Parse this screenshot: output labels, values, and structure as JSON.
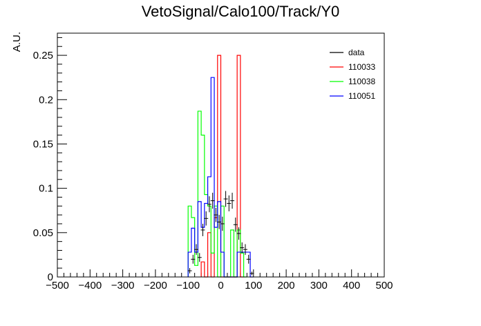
{
  "chart_data": {
    "type": "histogram",
    "title": "VetoSignal/Calo100/Track/Y0",
    "xlabel": "",
    "ylabel": "A.U.",
    "xlim": [
      -500,
      500
    ],
    "ylim": [
      0,
      0.275
    ],
    "x_ticks": [
      -500,
      -400,
      -300,
      -200,
      -100,
      0,
      100,
      200,
      300,
      400,
      500
    ],
    "x_tick_labels": [
      "−500",
      "−400",
      "−300",
      "−200",
      "−100",
      "0",
      "100",
      "200",
      "300",
      "400",
      "500"
    ],
    "y_ticks": [
      0,
      0.05,
      0.1,
      0.15,
      0.2,
      0.25
    ],
    "y_tick_labels": [
      "0",
      "0.05",
      "0.1",
      "0.15",
      "0.2",
      "0.25"
    ],
    "bin_edges": [
      -500,
      -490,
      -480,
      -470,
      -460,
      -450,
      -440,
      -430,
      -420,
      -410,
      -400,
      -390,
      -380,
      -370,
      -360,
      -350,
      -340,
      -330,
      -320,
      -310,
      -300,
      -290,
      -280,
      -270,
      -260,
      -250,
      -240,
      -230,
      -220,
      -210,
      -200,
      -190,
      -180,
      -170,
      -160,
      -150,
      -140,
      -130,
      -120,
      -110,
      -100,
      -90,
      -80,
      -70,
      -60,
      -50,
      -40,
      -30,
      -20,
      -10,
      0,
      10,
      20,
      30,
      40,
      50,
      60,
      70,
      80,
      90,
      100,
      110,
      120,
      130,
      140,
      150,
      160,
      170,
      180,
      190,
      200,
      210,
      220,
      230,
      240,
      250,
      260,
      270,
      280,
      290,
      300,
      310,
      320,
      330,
      340,
      350,
      360,
      370,
      380,
      390,
      400,
      410,
      420,
      430,
      440,
      450,
      460,
      470,
      480,
      490,
      500
    ],
    "legend_position": "top-right",
    "series": [
      {
        "name": "data",
        "style": "markers",
        "color": "#000000",
        "x": [
          -95,
          -85,
          -75,
          -65,
          -55,
          -45,
          -35,
          -25,
          -15,
          -5,
          5,
          15,
          25,
          35,
          45,
          55,
          65,
          75,
          85,
          95
        ],
        "y": [
          0.007,
          0.02,
          0.031,
          0.022,
          0.053,
          0.066,
          0.082,
          0.086,
          0.07,
          0.062,
          0.06,
          0.088,
          0.083,
          0.086,
          0.059,
          0.049,
          0.033,
          0.031,
          0.02,
          0.004
        ],
        "y_err": [
          0.003,
          0.005,
          0.006,
          0.005,
          0.007,
          0.008,
          0.009,
          0.009,
          0.008,
          0.008,
          0.008,
          0.009,
          0.009,
          0.009,
          0.008,
          0.007,
          0.006,
          0.006,
          0.005,
          0.002
        ]
      },
      {
        "name": "110033",
        "style": "step",
        "color": "#ff0000",
        "bins": [
          {
            "lo": -60,
            "hi": -50,
            "v": 0.017
          },
          {
            "lo": -50,
            "hi": -40,
            "v": 0.0
          },
          {
            "lo": -40,
            "hi": -30,
            "v": 0.05
          },
          {
            "lo": -30,
            "hi": -20,
            "v": 0.0
          },
          {
            "lo": -20,
            "hi": -10,
            "v": 0.067
          },
          {
            "lo": -10,
            "hi": 0,
            "v": 0.25
          },
          {
            "lo": 0,
            "hi": 10,
            "v": 0.0
          },
          {
            "lo": 10,
            "hi": 20,
            "v": 0.0
          },
          {
            "lo": 20,
            "hi": 30,
            "v": 0.0
          },
          {
            "lo": 30,
            "hi": 40,
            "v": 0.0
          },
          {
            "lo": 40,
            "hi": 50,
            "v": 0.0
          },
          {
            "lo": 50,
            "hi": 60,
            "v": 0.25
          },
          {
            "lo": 60,
            "hi": 70,
            "v": 0.0
          }
        ]
      },
      {
        "name": "110038",
        "style": "step",
        "color": "#00ff00",
        "bins": [
          {
            "lo": -100,
            "hi": -90,
            "v": 0.08
          },
          {
            "lo": -90,
            "hi": -80,
            "v": 0.067
          },
          {
            "lo": -80,
            "hi": -70,
            "v": 0.013
          },
          {
            "lo": -70,
            "hi": -60,
            "v": 0.187
          },
          {
            "lo": -60,
            "hi": -50,
            "v": 0.16
          },
          {
            "lo": -50,
            "hi": -40,
            "v": 0.093
          },
          {
            "lo": -40,
            "hi": -30,
            "v": 0.08
          },
          {
            "lo": -30,
            "hi": -20,
            "v": 0.027
          },
          {
            "lo": -20,
            "hi": -10,
            "v": 0.08
          },
          {
            "lo": -10,
            "hi": 0,
            "v": 0.0
          },
          {
            "lo": 0,
            "hi": 10,
            "v": 0.08
          },
          {
            "lo": 10,
            "hi": 20,
            "v": 0.0
          },
          {
            "lo": 20,
            "hi": 30,
            "v": 0.0
          },
          {
            "lo": 30,
            "hi": 40,
            "v": 0.053
          },
          {
            "lo": 40,
            "hi": 50,
            "v": 0.0
          },
          {
            "lo": 50,
            "hi": 60,
            "v": 0.053
          },
          {
            "lo": 60,
            "hi": 70,
            "v": 0.027
          },
          {
            "lo": 70,
            "hi": 80,
            "v": 0.0
          }
        ]
      },
      {
        "name": "110051",
        "style": "step",
        "color": "#0000ff",
        "bins": [
          {
            "lo": -100,
            "hi": -90,
            "v": 0.028
          },
          {
            "lo": -90,
            "hi": -80,
            "v": 0.055
          },
          {
            "lo": -80,
            "hi": -70,
            "v": 0.028
          },
          {
            "lo": -70,
            "hi": -60,
            "v": 0.085
          },
          {
            "lo": -60,
            "hi": -50,
            "v": 0.056
          },
          {
            "lo": -50,
            "hi": -40,
            "v": 0.083
          },
          {
            "lo": -40,
            "hi": -30,
            "v": 0.113
          },
          {
            "lo": -30,
            "hi": -20,
            "v": 0.225
          },
          {
            "lo": -20,
            "hi": -10,
            "v": 0.056
          },
          {
            "lo": -10,
            "hi": 0,
            "v": 0.085
          },
          {
            "lo": 0,
            "hi": 10,
            "v": 0.028
          },
          {
            "lo": 10,
            "hi": 20,
            "v": 0.0
          },
          {
            "lo": 20,
            "hi": 30,
            "v": 0.0
          },
          {
            "lo": 30,
            "hi": 40,
            "v": 0.0
          },
          {
            "lo": 40,
            "hi": 50,
            "v": 0.0
          },
          {
            "lo": 50,
            "hi": 60,
            "v": 0.028
          },
          {
            "lo": 60,
            "hi": 70,
            "v": 0.028
          },
          {
            "lo": 70,
            "hi": 80,
            "v": 0.028
          },
          {
            "lo": 80,
            "hi": 90,
            "v": 0.028
          },
          {
            "lo": 90,
            "hi": 100,
            "v": 0.0
          }
        ]
      }
    ]
  }
}
